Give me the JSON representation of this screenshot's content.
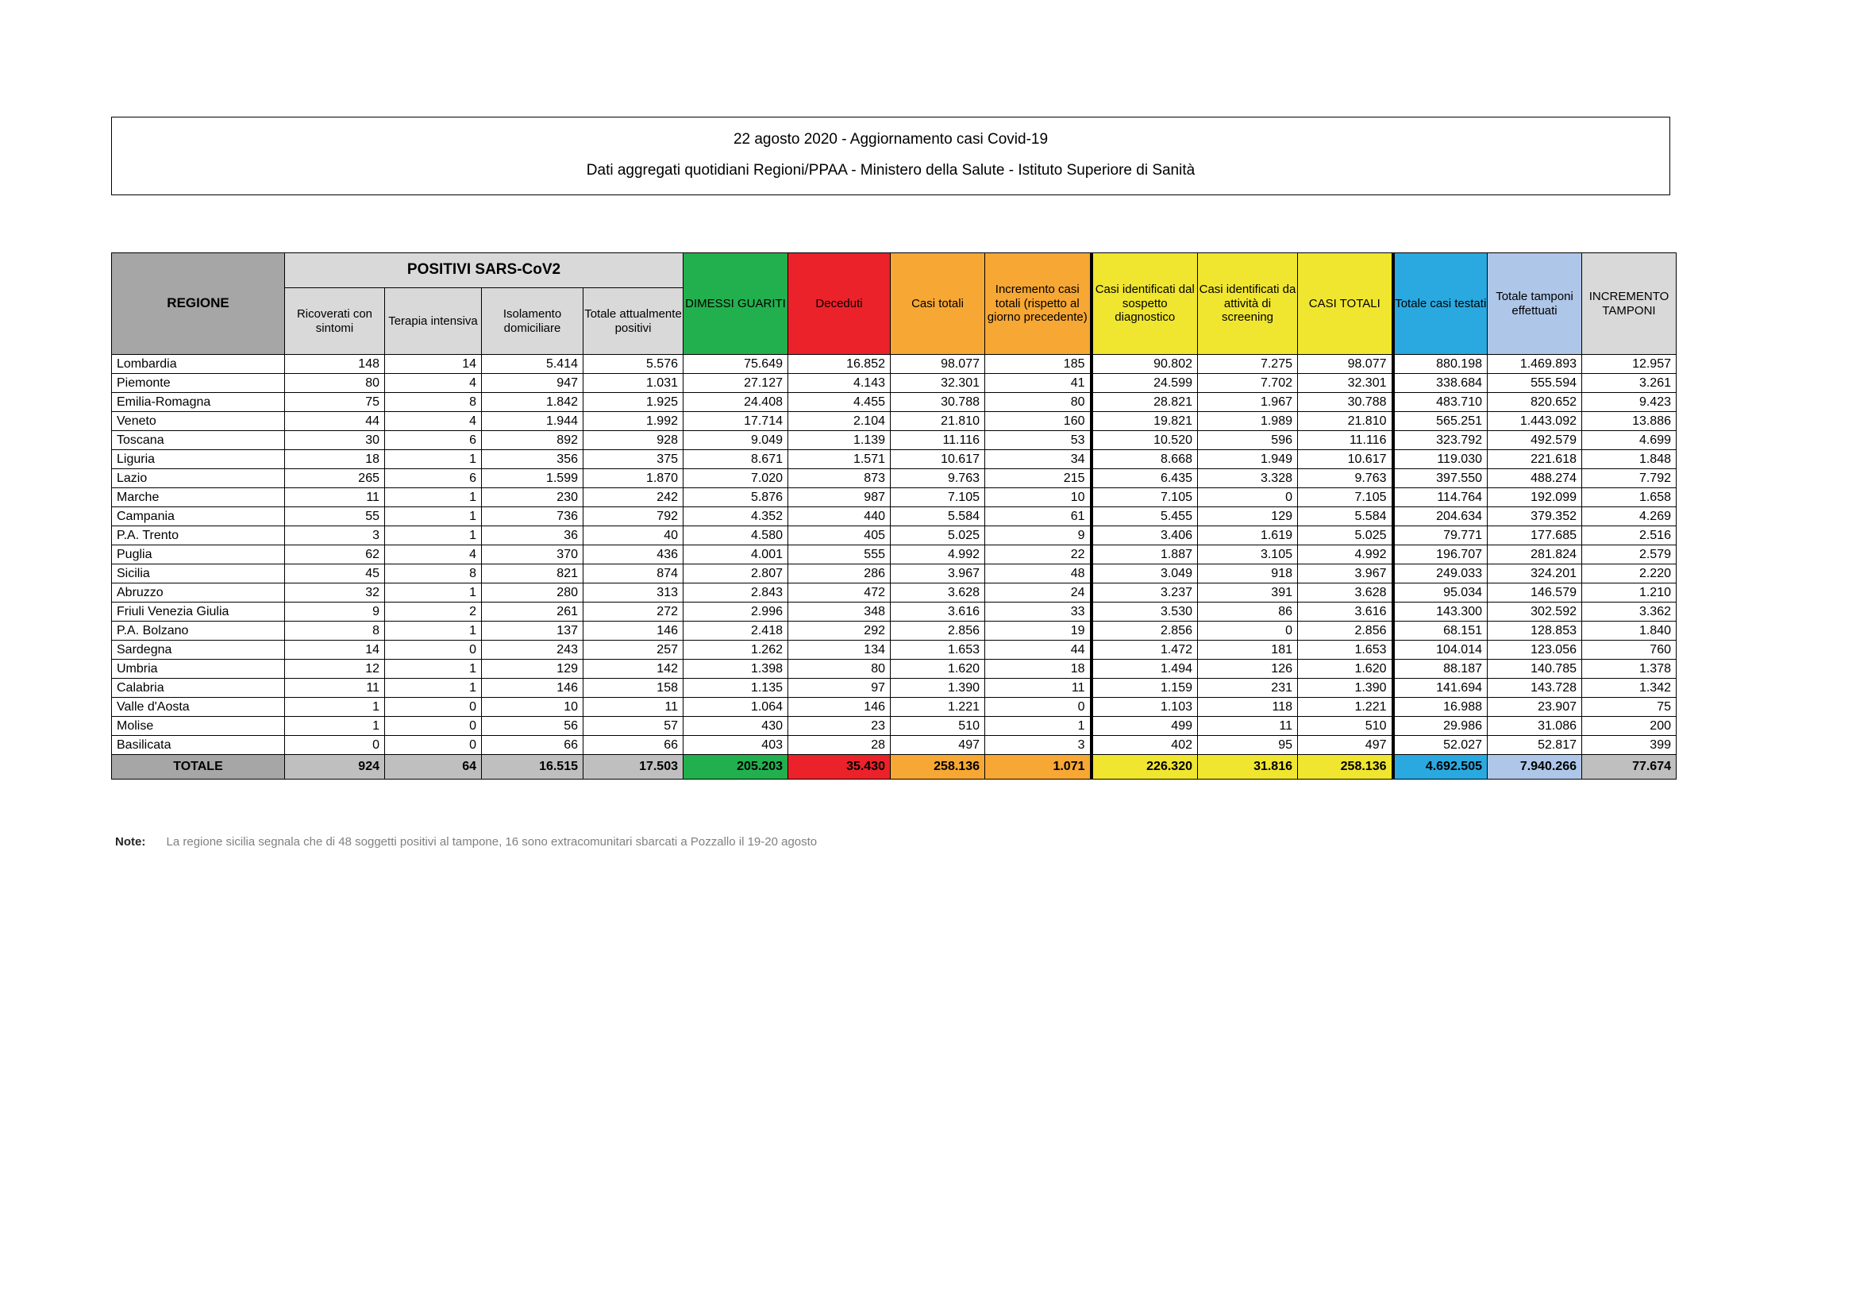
{
  "title": {
    "line1": "22 agosto 2020 - Aggiornamento casi Covid-19",
    "line2": "Dati aggregati quotidiani Regioni/PPAA - Ministero della Salute - Istituto Superiore di Sanità"
  },
  "table": {
    "headers": {
      "regione": "REGIONE",
      "positivi_group": "POSITIVI SARS-CoV2",
      "sub": [
        "Ricoverati con sintomi",
        "Terapia intensiva",
        "Isolamento domiciliare",
        "Totale attualmente positivi"
      ],
      "dimessi": "DIMESSI GUARITI",
      "deceduti": "Deceduti",
      "casi_totali": "Casi totali",
      "incremento": "Incremento casi totali (rispetto al giorno precedente)",
      "sospetto": "Casi identificati dal sospetto diagnostico",
      "screening": "Casi identificati da attività di screening",
      "casi_totali_caps": "CASI TOTALI",
      "testati": "Totale casi testati",
      "tamponi": "Totale tamponi effettuati",
      "incremento_tamponi": "INCREMENTO TAMPONI"
    },
    "rows": [
      {
        "region": "Lombardia",
        "values": [
          "148",
          "14",
          "5.414",
          "5.576",
          "75.649",
          "16.852",
          "98.077",
          "185",
          "90.802",
          "7.275",
          "98.077",
          "880.198",
          "1.469.893",
          "12.957"
        ]
      },
      {
        "region": "Piemonte",
        "values": [
          "80",
          "4",
          "947",
          "1.031",
          "27.127",
          "4.143",
          "32.301",
          "41",
          "24.599",
          "7.702",
          "32.301",
          "338.684",
          "555.594",
          "3.261"
        ]
      },
      {
        "region": "Emilia-Romagna",
        "values": [
          "75",
          "8",
          "1.842",
          "1.925",
          "24.408",
          "4.455",
          "30.788",
          "80",
          "28.821",
          "1.967",
          "30.788",
          "483.710",
          "820.652",
          "9.423"
        ]
      },
      {
        "region": "Veneto",
        "values": [
          "44",
          "4",
          "1.944",
          "1.992",
          "17.714",
          "2.104",
          "21.810",
          "160",
          "19.821",
          "1.989",
          "21.810",
          "565.251",
          "1.443.092",
          "13.886"
        ]
      },
      {
        "region": "Toscana",
        "values": [
          "30",
          "6",
          "892",
          "928",
          "9.049",
          "1.139",
          "11.116",
          "53",
          "10.520",
          "596",
          "11.116",
          "323.792",
          "492.579",
          "4.699"
        ]
      },
      {
        "region": "Liguria",
        "values": [
          "18",
          "1",
          "356",
          "375",
          "8.671",
          "1.571",
          "10.617",
          "34",
          "8.668",
          "1.949",
          "10.617",
          "119.030",
          "221.618",
          "1.848"
        ]
      },
      {
        "region": "Lazio",
        "values": [
          "265",
          "6",
          "1.599",
          "1.870",
          "7.020",
          "873",
          "9.763",
          "215",
          "6.435",
          "3.328",
          "9.763",
          "397.550",
          "488.274",
          "7.792"
        ]
      },
      {
        "region": "Marche",
        "values": [
          "11",
          "1",
          "230",
          "242",
          "5.876",
          "987",
          "7.105",
          "10",
          "7.105",
          "0",
          "7.105",
          "114.764",
          "192.099",
          "1.658"
        ]
      },
      {
        "region": "Campania",
        "values": [
          "55",
          "1",
          "736",
          "792",
          "4.352",
          "440",
          "5.584",
          "61",
          "5.455",
          "129",
          "5.584",
          "204.634",
          "379.352",
          "4.269"
        ]
      },
      {
        "region": "P.A. Trento",
        "values": [
          "3",
          "1",
          "36",
          "40",
          "4.580",
          "405",
          "5.025",
          "9",
          "3.406",
          "1.619",
          "5.025",
          "79.771",
          "177.685",
          "2.516"
        ]
      },
      {
        "region": "Puglia",
        "values": [
          "62",
          "4",
          "370",
          "436",
          "4.001",
          "555",
          "4.992",
          "22",
          "1.887",
          "3.105",
          "4.992",
          "196.707",
          "281.824",
          "2.579"
        ]
      },
      {
        "region": "Sicilia",
        "values": [
          "45",
          "8",
          "821",
          "874",
          "2.807",
          "286",
          "3.967",
          "48",
          "3.049",
          "918",
          "3.967",
          "249.033",
          "324.201",
          "2.220"
        ]
      },
      {
        "region": "Abruzzo",
        "values": [
          "32",
          "1",
          "280",
          "313",
          "2.843",
          "472",
          "3.628",
          "24",
          "3.237",
          "391",
          "3.628",
          "95.034",
          "146.579",
          "1.210"
        ]
      },
      {
        "region": "Friuli Venezia Giulia",
        "values": [
          "9",
          "2",
          "261",
          "272",
          "2.996",
          "348",
          "3.616",
          "33",
          "3.530",
          "86",
          "3.616",
          "143.300",
          "302.592",
          "3.362"
        ]
      },
      {
        "region": "P.A. Bolzano",
        "values": [
          "8",
          "1",
          "137",
          "146",
          "2.418",
          "292",
          "2.856",
          "19",
          "2.856",
          "0",
          "2.856",
          "68.151",
          "128.853",
          "1.840"
        ]
      },
      {
        "region": "Sardegna",
        "values": [
          "14",
          "0",
          "243",
          "257",
          "1.262",
          "134",
          "1.653",
          "44",
          "1.472",
          "181",
          "1.653",
          "104.014",
          "123.056",
          "760"
        ]
      },
      {
        "region": "Umbria",
        "values": [
          "12",
          "1",
          "129",
          "142",
          "1.398",
          "80",
          "1.620",
          "18",
          "1.494",
          "126",
          "1.620",
          "88.187",
          "140.785",
          "1.378"
        ]
      },
      {
        "region": "Calabria",
        "values": [
          "11",
          "1",
          "146",
          "158",
          "1.135",
          "97",
          "1.390",
          "11",
          "1.159",
          "231",
          "1.390",
          "141.694",
          "143.728",
          "1.342"
        ]
      },
      {
        "region": "Valle d'Aosta",
        "values": [
          "1",
          "0",
          "10",
          "11",
          "1.064",
          "146",
          "1.221",
          "0",
          "1.103",
          "118",
          "1.221",
          "16.988",
          "23.907",
          "75"
        ]
      },
      {
        "region": "Molise",
        "values": [
          "1",
          "0",
          "56",
          "57",
          "430",
          "23",
          "510",
          "1",
          "499",
          "11",
          "510",
          "29.986",
          "31.086",
          "200"
        ]
      },
      {
        "region": "Basilicata",
        "values": [
          "0",
          "0",
          "66",
          "66",
          "403",
          "28",
          "497",
          "3",
          "402",
          "95",
          "497",
          "52.027",
          "52.817",
          "399"
        ]
      }
    ],
    "total": {
      "label": "TOTALE",
      "values": [
        "924",
        "64",
        "16.515",
        "17.503",
        "205.203",
        "35.430",
        "258.136",
        "1.071",
        "226.320",
        "31.816",
        "258.136",
        "4.692.505",
        "7.940.266",
        "77.674"
      ]
    }
  },
  "note": {
    "label": "Note:",
    "text": "La regione sicilia segnala che di 48 soggetti positivi al tampone, 16 sono extracomunitari sbarcati a Pozzallo il 19-20 agosto"
  },
  "colors": {
    "green": "#22b04e",
    "red": "#eb222a",
    "orange": "#f7a733",
    "yellow": "#f0e62f",
    "blue": "#29a9e0",
    "periwinkle": "#aec6e8",
    "gray_dark": "#a6a6a6",
    "gray_light": "#d9d9d9",
    "gray_total": "#bfbfbf",
    "note_gray": "#808080"
  }
}
